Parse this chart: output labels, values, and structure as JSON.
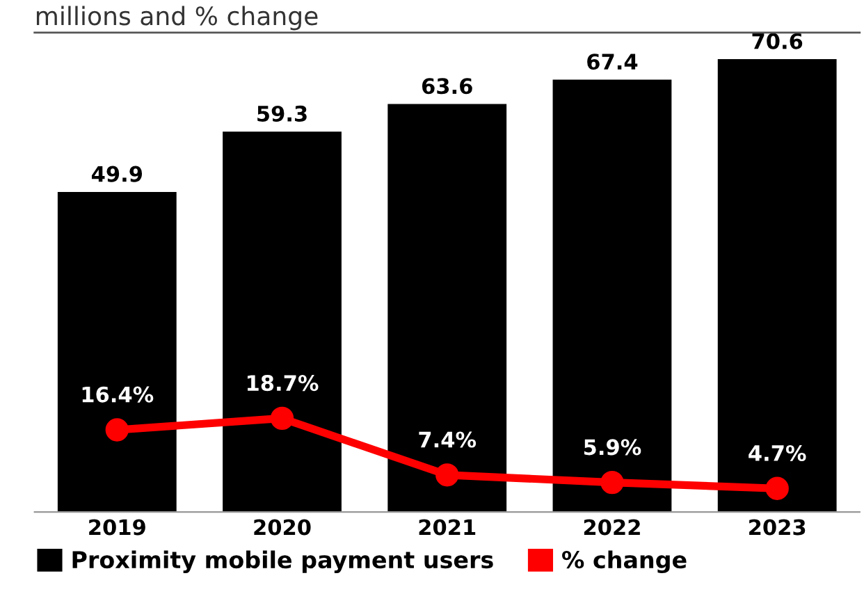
{
  "chart_data": {
    "type": "bar",
    "subtitle": "millions and % change",
    "categories": [
      "2019",
      "2020",
      "2021",
      "2022",
      "2023"
    ],
    "series": [
      {
        "name": "Proximity mobile payment users",
        "color": "#000000",
        "values": [
          49.9,
          59.3,
          63.6,
          67.4,
          70.6
        ],
        "data_labels": true
      },
      {
        "name": "% change",
        "type": "line",
        "axis": "y2",
        "color": "#ff0000",
        "marker": "circle",
        "values": [
          16.4,
          18.7,
          7.4,
          5.9,
          4.7
        ],
        "value_labels": [
          "16.4%",
          "18.7%",
          "7.4%",
          "5.9%",
          "4.7%"
        ]
      }
    ],
    "ylim": [
      0,
      75
    ],
    "y2lim": [
      0,
      96
    ],
    "tick_labels": "x",
    "grid": false,
    "legend": "bottom"
  }
}
